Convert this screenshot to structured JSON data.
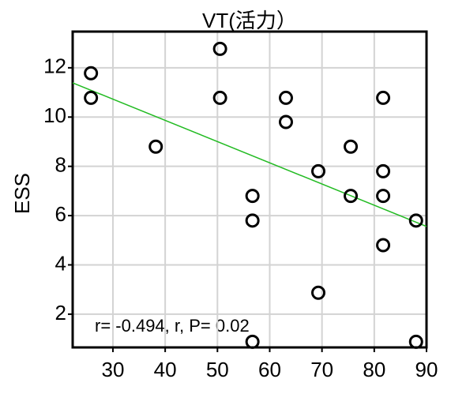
{
  "chart_data": {
    "type": "scatter",
    "title": "VT(活力）",
    "y_label": "ESS",
    "x": [
      25.8,
      25.8,
      38.2,
      50.5,
      50.5,
      56.7,
      56.7,
      56.7,
      63.1,
      63.1,
      69.3,
      69.3,
      75.5,
      75.5,
      81.7,
      81.7,
      81.7,
      81.7,
      88.0,
      88.0
    ],
    "values": [
      11.78,
      10.78,
      8.8,
      12.77,
      10.78,
      6.8,
      5.8,
      0.88,
      10.78,
      9.8,
      7.8,
      2.87,
      8.8,
      6.8,
      10.78,
      7.8,
      6.8,
      4.8,
      5.8,
      0.88
    ],
    "color": "#000000",
    "trend": {
      "x": [
        22.3,
        90
      ],
      "y": [
        11.39,
        5.56
      ],
      "color": "#22bb22"
    },
    "annotation": "r= -0.494, r, P= 0.02",
    "xlim": [
      22.3,
      90
    ],
    "xticks": [
      30,
      40,
      50,
      60,
      70,
      80,
      90
    ],
    "ylim": [
      0.65,
      13.47
    ],
    "yticks": [
      2,
      4,
      6,
      8,
      10,
      12
    ],
    "grid": true,
    "grid_color": "#d3d3d3"
  }
}
